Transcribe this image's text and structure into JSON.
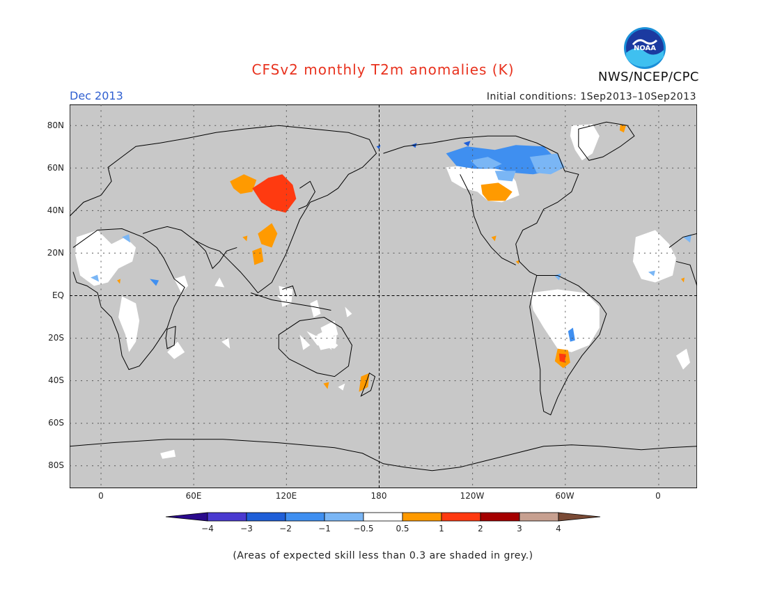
{
  "header": {
    "title": "CFSv2 monthly T2m anomalies (K)",
    "org": "NWS/NCEP/CPC",
    "month": "Dec 2013",
    "initial_conditions": "Initial conditions: 1Sep2013–10Sep2013"
  },
  "axes": {
    "lat_labels": [
      "80N",
      "60N",
      "40N",
      "20N",
      "EQ",
      "20S",
      "40S",
      "60S",
      "80S"
    ],
    "lon_labels": [
      "0",
      "60E",
      "120E",
      "180",
      "120W",
      "60W",
      "0"
    ]
  },
  "colorbar": {
    "labels": [
      "−4",
      "−3",
      "−2",
      "−1",
      "−0.5",
      "0.5",
      "1",
      "2",
      "3",
      "4"
    ],
    "colors": [
      "#2a0a8c",
      "#4a3ad0",
      "#1f5fd8",
      "#3f8ff0",
      "#7ab6f5",
      "#ffffff",
      "#ff9a00",
      "#ff3a10",
      "#a50000",
      "#c7a090",
      "#7a4a35"
    ]
  },
  "footnote": "(Areas of expected skill less than 0.3 are shaded in grey.)",
  "logo": {
    "text": "NOAA"
  },
  "colors": {
    "title": "#e8321e",
    "month": "#2f5fd0",
    "map_bg": "#c8c8c8"
  }
}
